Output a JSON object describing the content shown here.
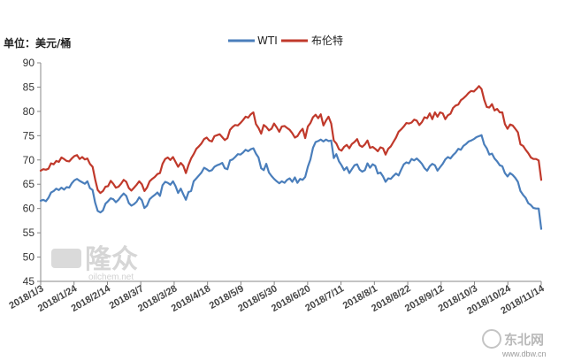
{
  "chart_data": {
    "type": "line",
    "title": "",
    "unit_label": "单位：美元/桶",
    "ylim": [
      45,
      90
    ],
    "y_ticks": [
      45,
      50,
      55,
      60,
      65,
      70,
      75,
      80,
      85,
      90
    ],
    "x_tick_labels": [
      "2018/1/3",
      "2018/1/24",
      "2018/2/14",
      "2018/3/7",
      "2018/3/28",
      "2018/4/18",
      "2018/5/9",
      "2018/5/30",
      "2018/6/20",
      "2018/7/11",
      "2018/8/1",
      "2018/8/22",
      "2018/9/12",
      "2018/10/3",
      "2018/10/24",
      "2018/11/14"
    ],
    "legend": [
      "WTI",
      "布伦特"
    ],
    "legend_position": "top-center",
    "grid": false,
    "series": [
      {
        "name": "WTI",
        "color": "#4a7ebb",
        "values": [
          61.6,
          61.8,
          61.5,
          62.2,
          63.3,
          63.6,
          64.1,
          63.8,
          64.3,
          63.9,
          64.4,
          64.3,
          65.2,
          65.8,
          66.1,
          65.7,
          65.4,
          65.1,
          65.6,
          64.2,
          63.8,
          61.2,
          59.5,
          59.2,
          59.6,
          61.0,
          61.5,
          62.1,
          61.9,
          61.3,
          61.8,
          62.5,
          63.1,
          62.6,
          61.1,
          60.6,
          60.9,
          61.4,
          62.3,
          61.7,
          60.1,
          60.6,
          61.9,
          62.4,
          62.8,
          63.3,
          62.6,
          64.8,
          65.5,
          65.3,
          64.9,
          65.6,
          64.6,
          63.2,
          64.1,
          62.9,
          61.8,
          63.4,
          63.6,
          65.6,
          66.2,
          66.8,
          67.4,
          68.4,
          68.1,
          67.7,
          67.9,
          68.6,
          68.9,
          69.1,
          69.4,
          68.3,
          68.1,
          69.9,
          70.1,
          70.6,
          71.2,
          71.1,
          71.5,
          72.1,
          71.8,
          72.2,
          72.4,
          71.3,
          70.5,
          68.3,
          67.9,
          69.2,
          67.4,
          66.7,
          66.1,
          65.6,
          65.2,
          65.6,
          65.3,
          65.9,
          66.2,
          65.5,
          66.4,
          65.3,
          66.1,
          65.9,
          66.5,
          68.6,
          70.1,
          72.5,
          73.7,
          73.9,
          74.2,
          73.8,
          74.2,
          73.9,
          74.0,
          70.4,
          71.2,
          69.7,
          68.9,
          67.9,
          68.5,
          67.3,
          68.1,
          68.9,
          69.1,
          68.0,
          67.6,
          67.9,
          69.3,
          68.4,
          69.1,
          68.8,
          67.2,
          67.4,
          66.6,
          65.5,
          66.2,
          66.1,
          66.7,
          67.2,
          66.8,
          68.0,
          69.1,
          69.5,
          69.3,
          70.2,
          69.9,
          70.3,
          69.8,
          69.2,
          68.3,
          67.8,
          68.7,
          69.2,
          68.9,
          67.8,
          68.5,
          69.2,
          70.1,
          70.6,
          70.3,
          71.0,
          71.5,
          72.3,
          72.1,
          72.9,
          73.3,
          73.8,
          74.0,
          74.3,
          74.7,
          74.9,
          75.1,
          73.2,
          72.4,
          71.1,
          71.3,
          70.3,
          69.7,
          68.9,
          68.7,
          67.3,
          66.6,
          67.3,
          66.9,
          66.3,
          65.5,
          63.6,
          62.8,
          62.2,
          61.1,
          60.7,
          60.1,
          60.0,
          60.0,
          55.8
        ]
      },
      {
        "name": "布伦特",
        "color": "#c0392b",
        "values": [
          67.8,
          68.1,
          68.0,
          68.2,
          69.3,
          69.1,
          69.8,
          69.6,
          70.5,
          70.2,
          69.8,
          69.7,
          70.3,
          70.8,
          71.0,
          70.2,
          70.6,
          70.1,
          70.3,
          69.2,
          68.6,
          66.0,
          63.8,
          63.2,
          63.6,
          64.5,
          64.6,
          65.7,
          65.1,
          64.3,
          64.5,
          65.1,
          65.9,
          65.5,
          64.2,
          63.7,
          64.3,
          64.9,
          65.6,
          65.0,
          63.6,
          64.3,
          65.6,
          66.1,
          66.5,
          67.1,
          67.3,
          69.2,
          70.2,
          70.5,
          70.0,
          70.6,
          69.6,
          68.6,
          69.4,
          68.8,
          67.3,
          69.0,
          70.3,
          71.2,
          72.3,
          72.8,
          73.4,
          74.3,
          74.6,
          74.0,
          73.8,
          74.9,
          75.1,
          75.3,
          74.7,
          74.1,
          74.5,
          76.2,
          76.8,
          77.2,
          77.1,
          77.6,
          78.2,
          78.9,
          78.7,
          79.4,
          79.8,
          77.4,
          76.6,
          75.4,
          77.2,
          76.8,
          76.1,
          76.4,
          77.5,
          76.7,
          75.8,
          76.9,
          77.0,
          76.6,
          76.2,
          75.5,
          74.6,
          74.9,
          75.8,
          76.4,
          74.5,
          76.9,
          77.6,
          78.8,
          79.3,
          78.6,
          79.4,
          77.1,
          78.1,
          78.9,
          77.5,
          74.0,
          73.4,
          72.2,
          71.9,
          72.7,
          73.1,
          72.4,
          73.3,
          73.7,
          74.3,
          73.0,
          72.7,
          73.2,
          74.0,
          72.5,
          72.7,
          72.3,
          71.8,
          72.6,
          72.4,
          71.1,
          72.3,
          72.8,
          73.7,
          74.6,
          75.8,
          76.3,
          76.9,
          77.6,
          77.5,
          77.7,
          78.3,
          78.1,
          77.2,
          77.8,
          78.8,
          78.6,
          79.6,
          78.4,
          79.8,
          78.9,
          79.8,
          79.6,
          78.4,
          79.2,
          79.5,
          80.7,
          81.2,
          81.4,
          82.3,
          82.7,
          83.2,
          83.8,
          84.2,
          84.1,
          84.6,
          85.2,
          84.6,
          82.4,
          80.9,
          80.8,
          81.5,
          80.2,
          80.5,
          79.8,
          79.8,
          77.4,
          76.4,
          77.3,
          77.1,
          76.4,
          75.7,
          73.2,
          72.9,
          72.1,
          71.4,
          70.5,
          70.2,
          70.2,
          69.9,
          65.9
        ]
      }
    ]
  },
  "watermark": {
    "brand": "隆众",
    "site": "oilchem.net"
  },
  "corner_watermark": {
    "name": "东北网",
    "site": "www.dbw.cn"
  }
}
